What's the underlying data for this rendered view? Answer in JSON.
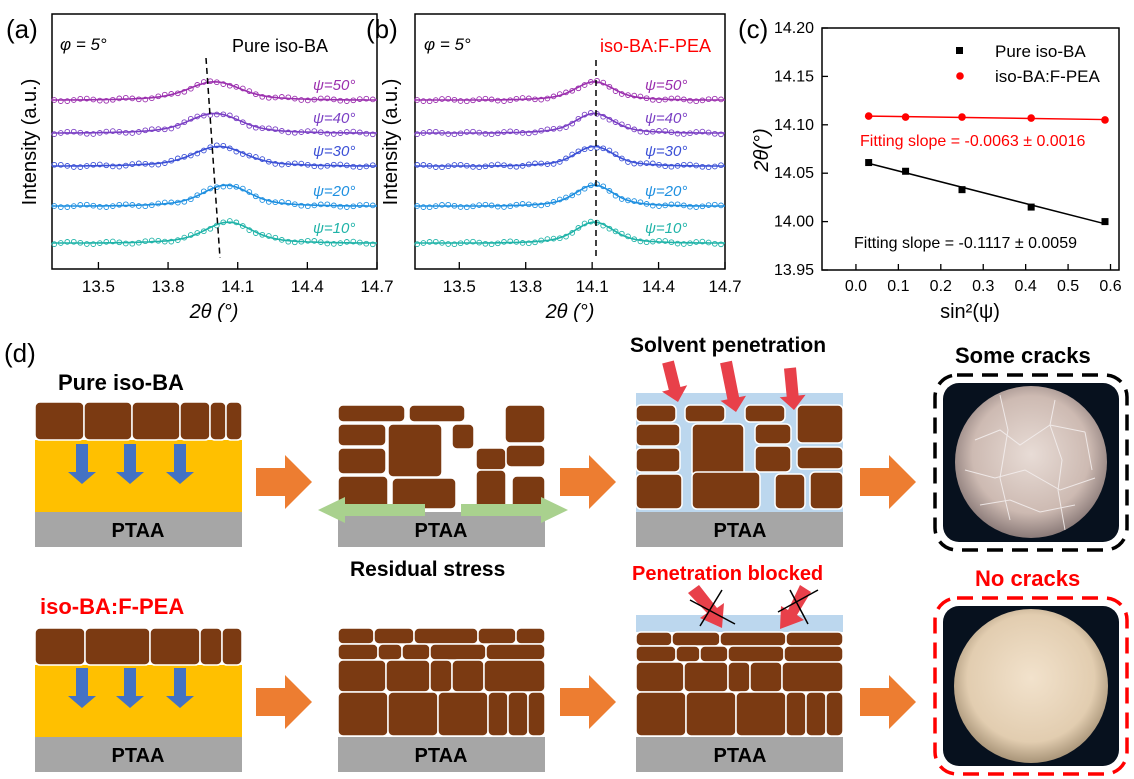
{
  "colors": {
    "brick": "#7b3a12",
    "yellow": "#ffc000",
    "substrate": "#a6a6a6",
    "arrow_orange": "#ed7d31",
    "arrow_blue": "#4472c4",
    "arrow_green": "#a9d18e",
    "solvent": "#bcd7ee",
    "red": "#ff0000",
    "psi_colors": [
      "#9b2fae",
      "#7a3fc4",
      "#3b50d6",
      "#1e8fe0",
      "#1fb3a8"
    ]
  },
  "panels": {
    "a": {
      "letter": "(a)",
      "phi": "φ = 5°",
      "sample": "Pure iso-BA"
    },
    "b": {
      "letter": "(b)",
      "phi": "φ = 5°",
      "sample": "iso-BA:F-PEA"
    },
    "c": {
      "letter": "(c)"
    },
    "d": {
      "letter": "(d)"
    }
  },
  "xrd_axis": {
    "ylabel": "Intensity (a.u.)",
    "xlabel": "2θ (°)",
    "xticks": [
      "13.5",
      "13.8",
      "14.1",
      "14.4",
      "14.7"
    ],
    "xlim": [
      13.3,
      14.7
    ],
    "psi_labels": [
      "ψ=50°",
      "ψ=40°",
      "ψ=30°",
      "ψ=20°",
      "ψ=10°"
    ]
  },
  "chart_data": [
    {
      "type": "line",
      "panel": "a",
      "x_unit": "2θ (°)",
      "peak_positions": {
        "ψ=50°": 14.0,
        "ψ=40°": 14.0,
        "ψ=30°": 14.02,
        "ψ=20°": 14.05,
        "ψ=10°": 14.06
      },
      "peak_widths": {
        "ψ=50°": 0.22,
        "ψ=40°": 0.22,
        "ψ=30°": 0.22,
        "ψ=20°": 0.2,
        "ψ=10°": 0.2
      }
    },
    {
      "type": "line",
      "panel": "b",
      "x_unit": "2θ (°)",
      "peak_positions": {
        "ψ=50°": 14.11,
        "ψ=40°": 14.11,
        "ψ=30°": 14.11,
        "ψ=20°": 14.11,
        "ψ=10°": 14.11
      },
      "peak_widths": {
        "ψ=50°": 0.17,
        "ψ=40°": 0.17,
        "ψ=30°": 0.17,
        "ψ=20°": 0.17,
        "ψ=10°": 0.17
      }
    },
    {
      "type": "scatter",
      "panel": "c",
      "xlabel": "sin²(ψ)",
      "ylabel": "2θ(°)",
      "xlim": [
        -0.08,
        0.62
      ],
      "ylim": [
        13.95,
        14.2
      ],
      "xticks": [
        "0.0",
        "0.1",
        "0.2",
        "0.3",
        "0.4",
        "0.5",
        "0.6"
      ],
      "yticks": [
        "13.95",
        "14.00",
        "14.05",
        "14.10",
        "14.15",
        "14.20"
      ],
      "legend_position": "top-right",
      "series": [
        {
          "name": "Pure iso-BA",
          "color": "#000000",
          "marker": "square",
          "x": [
            0.03,
            0.117,
            0.25,
            0.413,
            0.587
          ],
          "y": [
            14.061,
            14.052,
            14.033,
            14.015,
            14.0
          ],
          "fit_label": "Fitting slope = -0.1117 ± 0.0059"
        },
        {
          "name": "iso-BA:F-PEA",
          "color": "#ff0000",
          "marker": "circle",
          "x": [
            0.03,
            0.117,
            0.25,
            0.413,
            0.587
          ],
          "y": [
            14.109,
            14.108,
            14.108,
            14.107,
            14.105
          ],
          "fit_label": "Fitting slope = -0.0063 ± 0.0016"
        }
      ]
    }
  ],
  "schematic": {
    "row1_title": "Pure iso-BA",
    "row2_title": "iso-BA:F-PEA",
    "substrate": "PTAA",
    "residual_stress": "Residual stress",
    "solvent_penetration": "Solvent penetration",
    "penetration_blocked": "Penetration blocked",
    "some_cracks": "Some cracks",
    "no_cracks": "No cracks"
  }
}
